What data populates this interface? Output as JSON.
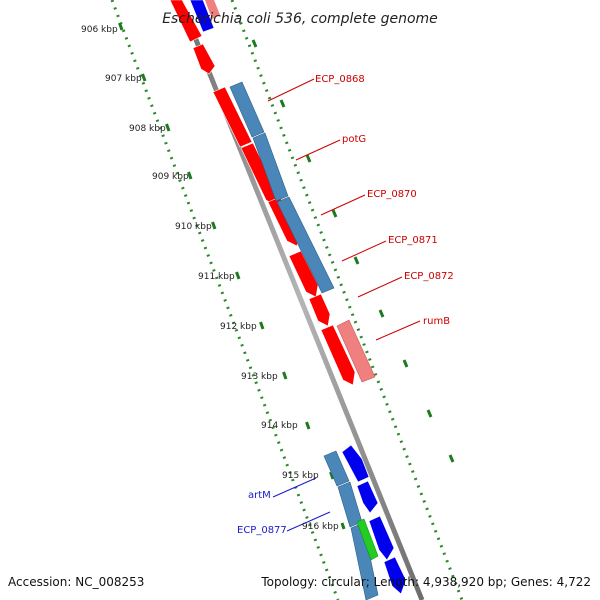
{
  "title": "Escherichia coli 536, complete genome",
  "footer": {
    "accession": "Accession: NC_008253",
    "summary": "Topology: circular; Length: 4,938,920 bp; Genes: 4,722"
  },
  "ruler_ticks": [
    "906 kbp",
    "907 kbp",
    "908 kbp",
    "909 kbp",
    "910 kbp",
    "911 kbp",
    "912 kbp",
    "913 kbp",
    "914 kbp",
    "915 kbp",
    "916 kbp"
  ],
  "gene_labels": [
    {
      "text": "ECP_0868",
      "color": "#cc0000"
    },
    {
      "text": "potG",
      "color": "#cc0000"
    },
    {
      "text": "ECP_0870",
      "color": "#cc0000"
    },
    {
      "text": "ECP_0871",
      "color": "#cc0000"
    },
    {
      "text": "ECP_0872",
      "color": "#cc0000"
    },
    {
      "text": "rumB",
      "color": "#cc0000"
    },
    {
      "text": "artM",
      "color": "#1a1acc"
    },
    {
      "text": "ECP_0877",
      "color": "#1a1acc"
    }
  ],
  "colors": {
    "forward_cds": "#ff0000",
    "reverse_cds": "#0000ee",
    "gene_track": "#4a86b8",
    "rrna_pink": "#f08080",
    "misc_green": "#22cc22",
    "backbone": "#8a8a8a",
    "gc_dots": "#2a8a2a"
  }
}
